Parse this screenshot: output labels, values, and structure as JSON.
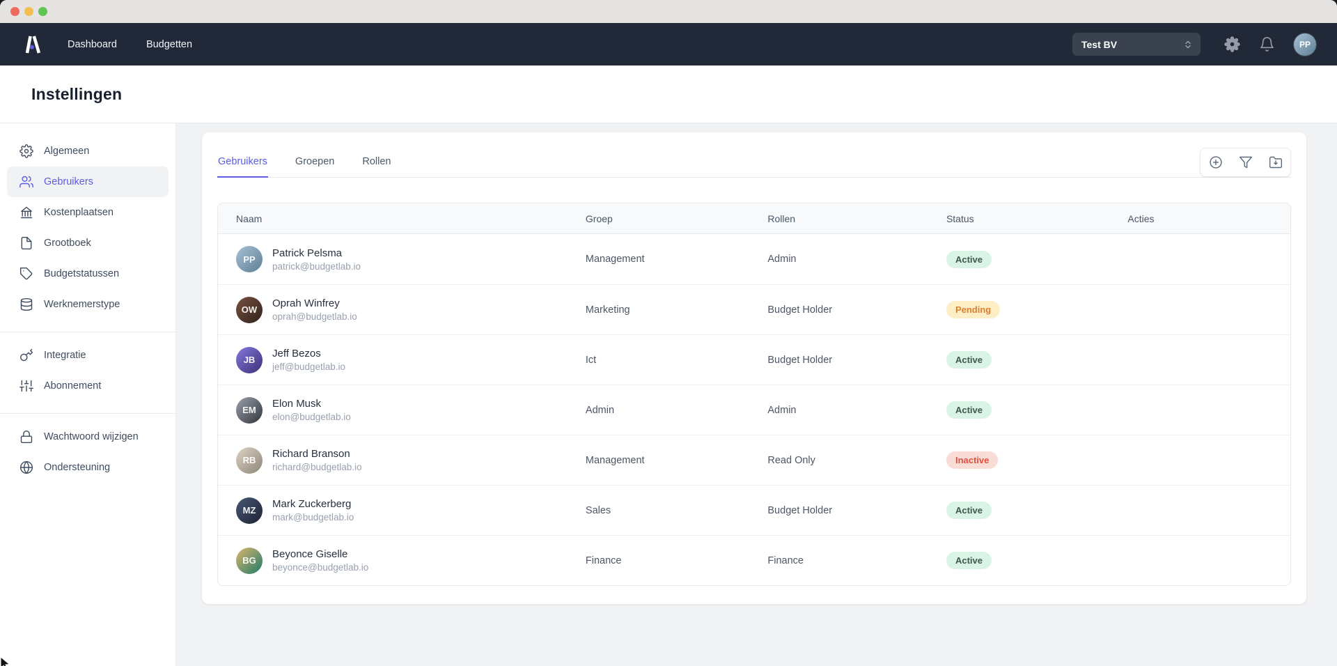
{
  "window": {
    "traffic_lights": [
      {
        "name": "close",
        "color": "#ed6a5e"
      },
      {
        "name": "minimize",
        "color": "#f4bf4f"
      },
      {
        "name": "zoom",
        "color": "#61c554"
      }
    ]
  },
  "navbar": {
    "logo": "budgetlab-logo",
    "links": [
      {
        "label": "Dashboard"
      },
      {
        "label": "Budgetten"
      }
    ],
    "company_select": {
      "value": "Test BV",
      "icon": "chevron-updown"
    },
    "icon_buttons": [
      {
        "name": "settings",
        "icon": "gear-solid"
      },
      {
        "name": "notifications",
        "icon": "bell"
      }
    ],
    "user_avatar": {
      "initials": "PP",
      "gradient": [
        "#a7c0d2",
        "#5e7f96"
      ]
    }
  },
  "page": {
    "title": "Instellingen"
  },
  "sidebar": {
    "groups": [
      {
        "items": [
          {
            "label": "Algemeen",
            "icon": "gear",
            "active": false
          },
          {
            "label": "Gebruikers",
            "icon": "users",
            "active": true
          },
          {
            "label": "Kostenplaatsen",
            "icon": "bank",
            "active": false
          },
          {
            "label": "Grootboek",
            "icon": "document",
            "active": false
          },
          {
            "label": "Budgetstatussen",
            "icon": "tag",
            "active": false
          },
          {
            "label": "Werknemerstype",
            "icon": "database",
            "active": false
          }
        ]
      },
      {
        "items": [
          {
            "label": "Integratie",
            "icon": "key",
            "active": false
          },
          {
            "label": "Abonnement",
            "icon": "sliders",
            "active": false
          }
        ]
      },
      {
        "items": [
          {
            "label": "Wachtwoord wijzigen",
            "icon": "lock",
            "active": false
          },
          {
            "label": "Ondersteuning",
            "icon": "globe",
            "active": false
          }
        ]
      }
    ]
  },
  "main": {
    "tabs": [
      {
        "label": "Gebruikers",
        "active": true
      },
      {
        "label": "Groepen",
        "active": false
      },
      {
        "label": "Rollen",
        "active": false
      }
    ],
    "toolbar": [
      {
        "name": "add",
        "icon": "plus-circle"
      },
      {
        "name": "filter",
        "icon": "funnel"
      },
      {
        "name": "export",
        "icon": "folder-download"
      }
    ],
    "table": {
      "columns": [
        "Naam",
        "Groep",
        "Rollen",
        "Status",
        "Acties"
      ],
      "rows": [
        {
          "name": "Patrick Pelsma",
          "email": "patrick@budgetlab.io",
          "group": "Management",
          "role": "Admin",
          "status": "Active",
          "initials": "PP",
          "gradient": [
            "#a7c0d2",
            "#5e7f96"
          ]
        },
        {
          "name": "Oprah Winfrey",
          "email": "oprah@budgetlab.io",
          "group": "Marketing",
          "role": "Budget Holder",
          "status": "Pending",
          "initials": "OW",
          "gradient": [
            "#7a5240",
            "#2e211c"
          ]
        },
        {
          "name": "Jeff Bezos",
          "email": "jeff@budgetlab.io",
          "group": "Ict",
          "role": "Budget Holder",
          "status": "Active",
          "initials": "JB",
          "gradient": [
            "#8577e0",
            "#3a3174"
          ]
        },
        {
          "name": "Elon Musk",
          "email": "elon@budgetlab.io",
          "group": "Admin",
          "role": "Admin",
          "status": "Active",
          "initials": "EM",
          "gradient": [
            "#9aa0ab",
            "#31353d"
          ]
        },
        {
          "name": "Richard Branson",
          "email": "richard@budgetlab.io",
          "group": "Management",
          "role": "Read Only",
          "status": "Inactive",
          "initials": "RB",
          "gradient": [
            "#ddd3c6",
            "#8d8578"
          ]
        },
        {
          "name": "Mark Zuckerberg",
          "email": "mark@budgetlab.io",
          "group": "Sales",
          "role": "Budget Holder",
          "status": "Active",
          "initials": "MZ",
          "gradient": [
            "#4a5875",
            "#1b2233"
          ]
        },
        {
          "name": "Beyonce Giselle",
          "email": "beyonce@budgetlab.io",
          "group": "Finance",
          "role": "Finance",
          "status": "Active",
          "initials": "BG",
          "gradient": [
            "#dcb66e",
            "#1f7a68"
          ]
        }
      ]
    }
  },
  "colors": {
    "accent": "#5b5ce2",
    "navbar_bg": "#212938",
    "page_bg": "#f1f2f4",
    "status": {
      "Active": {
        "bg": "#d9f3e5",
        "text": "#3c5a4c"
      },
      "Pending": {
        "bg": "#fdeec6",
        "text": "#de7e2d"
      },
      "Inactive": {
        "bg": "#fadcd6",
        "text": "#e04f3f"
      }
    }
  }
}
